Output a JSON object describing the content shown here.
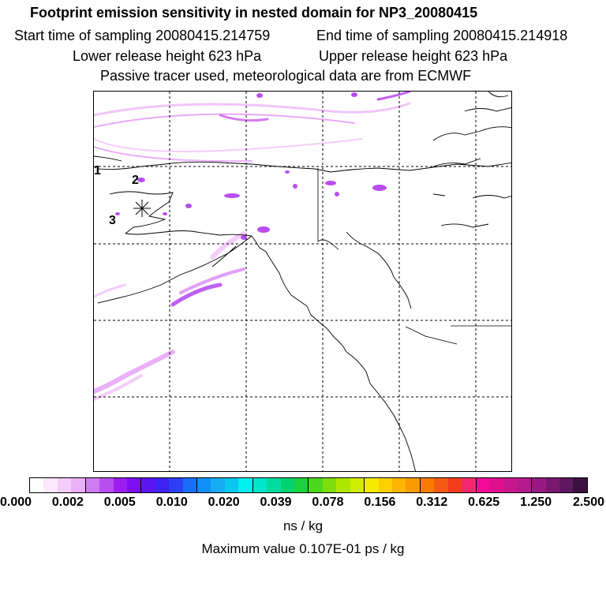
{
  "title": "Footprint emission sensitivity in nested domain for NP3_20080415",
  "sampling": {
    "start": "Start time of sampling 20080415.214759",
    "end": "End time of sampling 20080415.214918"
  },
  "release": {
    "lower": "Lower release height  623 hPa",
    "upper": "Upper release height  623 hPa"
  },
  "tracer_note": "Passive tracer used, meteorological data are from ECMWF",
  "map": {
    "markers": [
      {
        "label": "1"
      },
      {
        "label": "2"
      },
      {
        "label": "3"
      }
    ]
  },
  "colorbar": {
    "tick_labels": [
      "0.000",
      "0.002",
      "0.005",
      "0.010",
      "0.020",
      "0.039",
      "0.078",
      "0.156",
      "0.312",
      "0.625",
      "1.250",
      "2.500"
    ],
    "colors": [
      "#ffffff",
      "#fbe8fd",
      "#f4cdfb",
      "#eab0f8",
      "#cf7cf2",
      "#b84df0",
      "#9d1cef",
      "#7c10f0",
      "#5a16f0",
      "#3c22f3",
      "#2d3ff5",
      "#1a6ef7",
      "#1090f6",
      "#16acf4",
      "#0bc6ef",
      "#00f0f0",
      "#00e6c8",
      "#00dca0",
      "#00d26e",
      "#1ad23c",
      "#4cd61e",
      "#80dc0a",
      "#aee600",
      "#d2ec00",
      "#f5ea00",
      "#fcd000",
      "#fcb400",
      "#f89a00",
      "#f57c00",
      "#f55a14",
      "#f53c1c",
      "#f0286e",
      "#f00a96",
      "#e0108c",
      "#c8168e",
      "#b41a8c",
      "#961a82",
      "#7a1870",
      "#5e1860",
      "#3c1040"
    ],
    "units": "ns / kg",
    "max_value": "Maximum value  0.107E-01 ps / kg"
  }
}
